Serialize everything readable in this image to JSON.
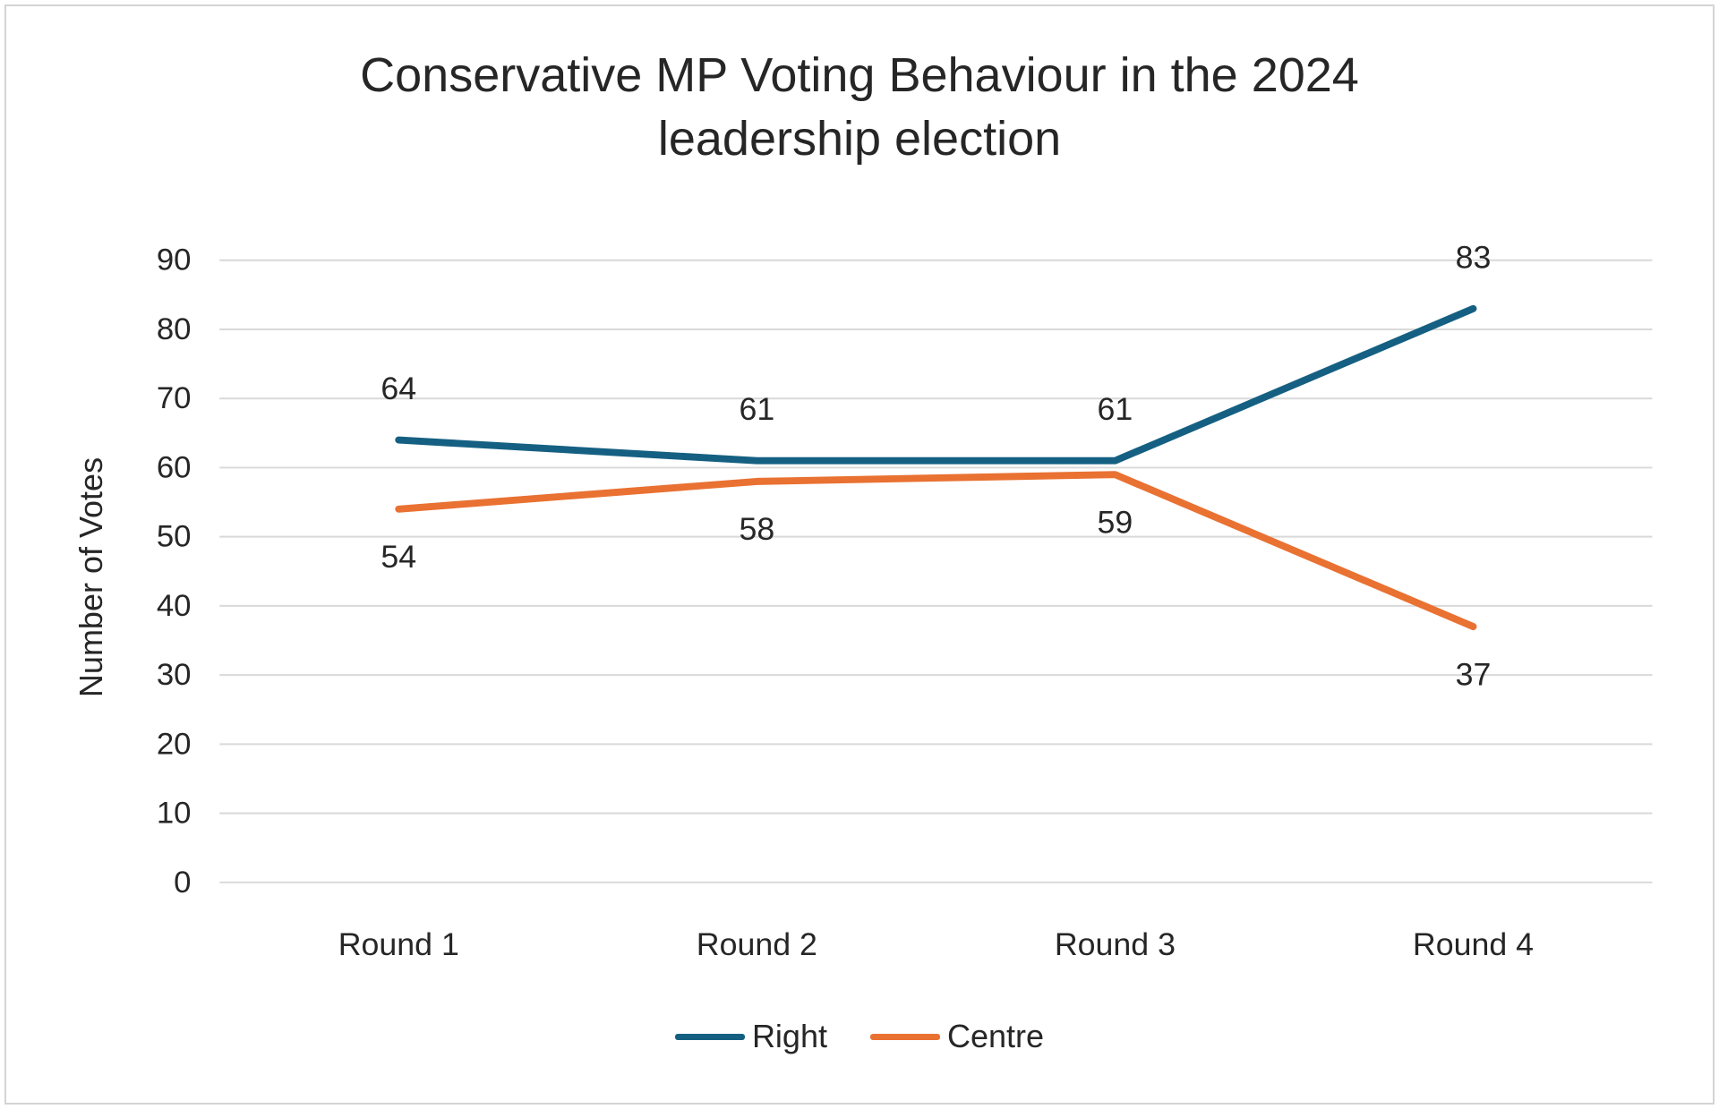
{
  "frame": {
    "background": "#ffffff",
    "border_color": "#d4d4d4"
  },
  "chart_data": {
    "type": "line",
    "title": "Conservative MP Voting Behaviour in the 2024\nleadership election",
    "xlabel": "",
    "ylabel": "Number of Votes",
    "categories": [
      "Round 1",
      "Round 2",
      "Round 3",
      "Round 4"
    ],
    "series": [
      {
        "name": "Right",
        "color": "#156082",
        "values": [
          64,
          61,
          61,
          83
        ],
        "label_position": "above"
      },
      {
        "name": "Centre",
        "color": "#E97132",
        "values": [
          54,
          58,
          59,
          37
        ],
        "label_position": "below"
      }
    ],
    "ylim": [
      0,
      90
    ],
    "ytick_step": 10,
    "grid": true,
    "gridline_color": "#D9D9D9",
    "text_color": "#262626",
    "legend_position": "bottom"
  }
}
